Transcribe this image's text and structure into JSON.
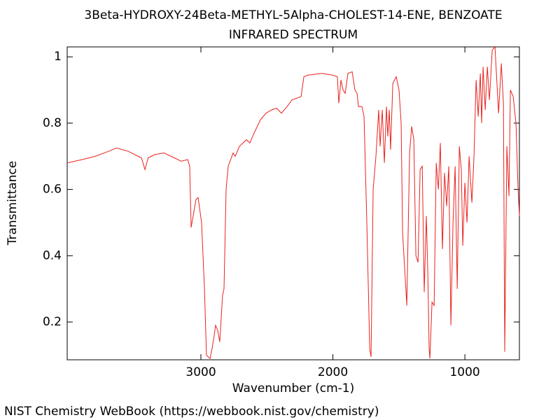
{
  "chart_data": {
    "type": "line",
    "title": "3Beta-HYDROXY-24Beta-METHYL-5Alpha-CHOLEST-14-ENE, BENZOATE",
    "subtitle": "INFRARED SPECTRUM",
    "x_label": "Wavenumber (cm-1)",
    "y_label": "Transmittance",
    "color": "#e8231f",
    "xlim": [
      4013,
      587
    ],
    "ylim": [
      0.086,
      1.03
    ],
    "xticks": [
      3000,
      2000,
      1000
    ],
    "yticks": [
      0.2,
      0.4,
      0.6,
      0.8,
      1
    ],
    "x": [
      4013,
      3900,
      3800,
      3700,
      3640,
      3550,
      3450,
      3424,
      3400,
      3350,
      3280,
      3200,
      3150,
      3100,
      3085,
      3074,
      3037,
      3021,
      2995,
      2973,
      2958,
      2931,
      2915,
      2899,
      2889,
      2873,
      2857,
      2836,
      2825,
      2809,
      2793,
      2756,
      2740,
      2708,
      2655,
      2629,
      2597,
      2549,
      2507,
      2464,
      2427,
      2390,
      2347,
      2310,
      2241,
      2220,
      2188,
      2082,
      2003,
      1966,
      1955,
      1939,
      1923,
      1907,
      1886,
      1854,
      1833,
      1817,
      1806,
      1780,
      1764,
      1743,
      1721,
      1711,
      1695,
      1674,
      1653,
      1642,
      1626,
      1610,
      1594,
      1584,
      1573,
      1563,
      1546,
      1520,
      1499,
      1483,
      1472,
      1456,
      1440,
      1419,
      1403,
      1387,
      1371,
      1355,
      1339,
      1323,
      1308,
      1292,
      1281,
      1271,
      1265,
      1249,
      1233,
      1217,
      1201,
      1186,
      1170,
      1154,
      1138,
      1122,
      1106,
      1090,
      1074,
      1058,
      1042,
      1027,
      1016,
      1000,
      984,
      968,
      947,
      931,
      915,
      899,
      883,
      873,
      862,
      846,
      830,
      814,
      793,
      772,
      745,
      724,
      708,
      698,
      682,
      666,
      655,
      634,
      613,
      597,
      587
    ],
    "values": [
      0.68,
      0.69,
      0.7,
      0.715,
      0.725,
      0.715,
      0.695,
      0.66,
      0.695,
      0.705,
      0.71,
      0.695,
      0.685,
      0.69,
      0.67,
      0.485,
      0.57,
      0.575,
      0.5,
      0.3,
      0.1,
      0.09,
      0.12,
      0.16,
      0.19,
      0.175,
      0.14,
      0.28,
      0.3,
      0.6,
      0.67,
      0.71,
      0.7,
      0.73,
      0.75,
      0.74,
      0.77,
      0.81,
      0.83,
      0.84,
      0.845,
      0.83,
      0.85,
      0.87,
      0.88,
      0.94,
      0.945,
      0.95,
      0.945,
      0.94,
      0.86,
      0.93,
      0.9,
      0.89,
      0.95,
      0.955,
      0.9,
      0.89,
      0.85,
      0.85,
      0.82,
      0.5,
      0.12,
      0.095,
      0.6,
      0.7,
      0.84,
      0.73,
      0.84,
      0.68,
      0.85,
      0.76,
      0.84,
      0.72,
      0.92,
      0.94,
      0.9,
      0.8,
      0.47,
      0.36,
      0.25,
      0.71,
      0.79,
      0.75,
      0.4,
      0.38,
      0.66,
      0.67,
      0.29,
      0.52,
      0.35,
      0.12,
      0.09,
      0.26,
      0.25,
      0.68,
      0.6,
      0.74,
      0.42,
      0.65,
      0.55,
      0.67,
      0.19,
      0.5,
      0.67,
      0.3,
      0.73,
      0.66,
      0.43,
      0.62,
      0.5,
      0.7,
      0.56,
      0.7,
      0.93,
      0.82,
      0.95,
      0.8,
      0.97,
      0.84,
      0.97,
      0.87,
      1.02,
      1.03,
      0.83,
      0.98,
      0.86,
      0.11,
      0.73,
      0.58,
      0.9,
      0.88,
      0.8,
      0.6,
      0.52
    ]
  },
  "footer": "NIST Chemistry WebBook (https://webbook.nist.gov/chemistry)"
}
